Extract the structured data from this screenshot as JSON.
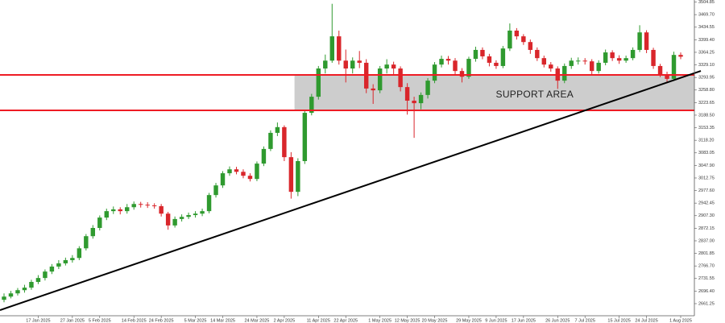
{
  "chart_data": {
    "type": "candlestick",
    "categories": [
      null,
      null,
      null,
      null,
      null,
      "17 Jan 2025",
      null,
      null,
      null,
      null,
      "27 Jan 2025",
      null,
      null,
      null,
      "5 Feb 2025",
      null,
      null,
      null,
      null,
      "14 Feb 2025",
      null,
      null,
      null,
      "24 Feb 2025",
      null,
      null,
      null,
      null,
      "5 Mar 2025",
      null,
      null,
      null,
      "14 Mar 2025",
      null,
      null,
      null,
      null,
      "24 Mar 2025",
      null,
      null,
      null,
      "2 Apr 2025",
      null,
      null,
      null,
      null,
      "11 Apr 2025",
      null,
      null,
      null,
      "22 Apr 2025",
      null,
      null,
      null,
      null,
      "1 May 2025",
      null,
      null,
      null,
      "12 May 2025",
      null,
      null,
      null,
      "20 May 2025",
      null,
      null,
      null,
      null,
      "29 May 2025",
      null,
      null,
      null,
      "9 Jun 2025",
      null,
      null,
      null,
      "17 Jun 2025",
      null,
      null,
      null,
      null,
      "26 Jun 2025",
      null,
      null,
      null,
      "7 Jul 2025",
      null,
      null,
      null,
      null,
      "15 Jul 2025",
      null,
      null,
      null,
      "24 Jul 2025",
      null,
      null,
      null,
      null,
      "1 Aug 2025"
    ],
    "open": [
      2672,
      2681,
      2690,
      2699,
      2706,
      2722,
      2733,
      2751,
      2765,
      2774,
      2783,
      2789,
      2816,
      2850,
      2873,
      2902,
      2920,
      2925,
      2920,
      2931,
      2940,
      2938,
      2936,
      2934,
      2913,
      2880,
      2898,
      2904,
      2909,
      2913,
      2920,
      2965,
      2992,
      3026,
      3037,
      3030,
      3019,
      3010,
      3053,
      3094,
      3139,
      3155,
      3071,
      2974,
      3060,
      3195,
      3240,
      3319,
      3341,
      3409,
      3341,
      3319,
      3341,
      3335,
      3263,
      3258,
      3319,
      3330,
      3319,
      3267,
      3229,
      3222,
      3245,
      3285,
      3330,
      3346,
      3341,
      3312,
      3296,
      3346,
      3371,
      3353,
      3335,
      3326,
      3375,
      3425,
      3409,
      3393,
      3371,
      3348,
      3330,
      3319,
      3285,
      3326,
      3341,
      3341,
      3339,
      3312,
      3335,
      3364,
      3348,
      3341,
      3348,
      3371,
      3420,
      3371,
      3326,
      3303,
      3290,
      3357
    ],
    "high": [
      2690,
      2697,
      2705,
      2714,
      2728,
      2741,
      2757,
      2772,
      2783,
      2790,
      2797,
      2822,
      2856,
      2881,
      2908,
      2927,
      2933,
      2931,
      2940,
      2947,
      2946,
      2945,
      2942,
      2940,
      2918,
      2905,
      2911,
      2916,
      2920,
      2927,
      2971,
      2999,
      3032,
      3045,
      3044,
      3037,
      3026,
      3059,
      3101,
      3146,
      3168,
      3160,
      3085,
      3068,
      3202,
      3248,
      3326,
      3358,
      3500,
      3425,
      3372,
      3350,
      3368,
      3345,
      3275,
      3326,
      3345,
      3338,
      3325,
      3278,
      3240,
      3252,
      3292,
      3337,
      3355,
      3354,
      3348,
      3320,
      3352,
      3380,
      3378,
      3360,
      3342,
      3382,
      3445,
      3432,
      3415,
      3400,
      3378,
      3355,
      3337,
      3325,
      3333,
      3349,
      3350,
      3348,
      3345,
      3342,
      3372,
      3370,
      3356,
      3355,
      3378,
      3440,
      3426,
      3377,
      3332,
      3310,
      3366,
      3364
    ],
    "low": [
      2665,
      2676,
      2684,
      2692,
      2700,
      2716,
      2726,
      2744,
      2758,
      2768,
      2776,
      2783,
      2810,
      2843,
      2866,
      2895,
      2912,
      2911,
      2913,
      2924,
      2930,
      2929,
      2927,
      2905,
      2868,
      2874,
      2891,
      2898,
      2902,
      2906,
      2914,
      2958,
      2985,
      3019,
      3023,
      3012,
      3003,
      3004,
      3046,
      3088,
      3130,
      3060,
      2955,
      2962,
      3052,
      3188,
      3232,
      3305,
      3335,
      3330,
      3280,
      3305,
      3320,
      3250,
      3220,
      3250,
      3305,
      3300,
      3255,
      3190,
      3125,
      3205,
      3235,
      3278,
      3322,
      3330,
      3300,
      3280,
      3290,
      3338,
      3345,
      3325,
      3318,
      3320,
      3368,
      3400,
      3385,
      3360,
      3340,
      3322,
      3310,
      3262,
      3278,
      3318,
      3330,
      3330,
      3302,
      3305,
      3328,
      3340,
      3332,
      3335,
      3342,
      3365,
      3362,
      3318,
      3295,
      3282,
      3284,
      3345
    ],
    "close": [
      2681,
      2690,
      2699,
      2706,
      2722,
      2733,
      2751,
      2765,
      2774,
      2783,
      2789,
      2816,
      2850,
      2873,
      2902,
      2920,
      2925,
      2920,
      2931,
      2940,
      2938,
      2936,
      2934,
      2913,
      2880,
      2898,
      2904,
      2909,
      2913,
      2920,
      2965,
      2992,
      3026,
      3037,
      3030,
      3019,
      3010,
      3053,
      3094,
      3139,
      3155,
      3071,
      2974,
      3060,
      3195,
      3240,
      3319,
      3341,
      3409,
      3341,
      3319,
      3341,
      3335,
      3263,
      3258,
      3319,
      3330,
      3319,
      3267,
      3229,
      3222,
      3245,
      3285,
      3330,
      3346,
      3341,
      3312,
      3296,
      3346,
      3371,
      3353,
      3335,
      3326,
      3375,
      3425,
      3409,
      3393,
      3371,
      3348,
      3330,
      3319,
      3285,
      3326,
      3341,
      3341,
      3339,
      3312,
      3335,
      3364,
      3348,
      3341,
      3348,
      3371,
      3420,
      3371,
      3326,
      3303,
      3290,
      3357,
      3352
    ],
    "up_color": "#2f9a2f",
    "down_color": "#d9262b",
    "ylim": [
      2627.4,
      3510.6
    ],
    "yticks": [
      {
        "value": 2661.25,
        "label": "2661.25"
      },
      {
        "value": 2696.4,
        "label": "2696.40"
      },
      {
        "value": 2731.55,
        "label": "2731.55"
      },
      {
        "value": 2766.7,
        "label": "2766.70"
      },
      {
        "value": 2801.85,
        "label": "2801.85"
      },
      {
        "value": 2837,
        "label": "2837.00"
      },
      {
        "value": 2872.15,
        "label": "2872.15"
      },
      {
        "value": 2907.3,
        "label": "2907.30"
      },
      {
        "value": 2942.45,
        "label": "2942.45"
      },
      {
        "value": 2977.6,
        "label": "2977.60"
      },
      {
        "value": 3012.75,
        "label": "3012.75"
      },
      {
        "value": 3047.9,
        "label": "3047.90"
      },
      {
        "value": 3083.05,
        "label": "3083.05"
      },
      {
        "value": 3118.2,
        "label": "3118.20"
      },
      {
        "value": 3153.35,
        "label": "3153.35"
      },
      {
        "value": 3188.5,
        "label": "3188.50"
      },
      {
        "value": 3223.65,
        "label": "3223.65"
      },
      {
        "value": 3258.8,
        "label": "3258.80"
      },
      {
        "value": 3293.95,
        "label": "3293.95"
      },
      {
        "value": 3329.1,
        "label": "3329.10"
      },
      {
        "value": 3364.25,
        "label": "3364.25"
      },
      {
        "value": 3399.4,
        "label": "3399.40"
      },
      {
        "value": 3434.55,
        "label": "3434.55"
      },
      {
        "value": 3469.7,
        "label": "3469.70"
      },
      {
        "value": 3504.85,
        "label": "3504.85"
      }
    ],
    "grid": false,
    "support_area": {
      "label": "SUPPORT AREA",
      "upper": 3301,
      "lower": 3202,
      "line_color": "#ee1c24",
      "fill": "#c8c8c8"
    },
    "trendline": {
      "start": 2647,
      "end": 3293,
      "color": "#000000"
    }
  }
}
